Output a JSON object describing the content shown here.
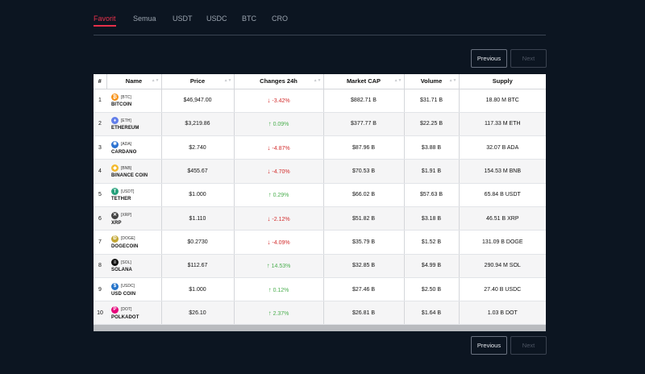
{
  "tabs": [
    {
      "label": "Favorit",
      "active": true
    },
    {
      "label": "Semua",
      "active": false
    },
    {
      "label": "USDT",
      "active": false
    },
    {
      "label": "USDC",
      "active": false
    },
    {
      "label": "BTC",
      "active": false
    },
    {
      "label": "CRO",
      "active": false
    }
  ],
  "pagination": {
    "previous": "Previous",
    "next": "Next"
  },
  "table": {
    "headers": [
      "#",
      "Name",
      "Price",
      "Changes 24h",
      "Market CAP",
      "Volume",
      "Supply"
    ],
    "rows": [
      {
        "num": "1",
        "symbol": "[BTC]",
        "name": "BITCOIN",
        "price": "$46,947.00",
        "change": "-3.42%",
        "dir": "down",
        "mcap": "$882.71 B",
        "volume": "$31.71 B",
        "supply": "18.80 M BTC",
        "icon": "bitcoin-icon",
        "color": "#f7931a",
        "glyph": "₿"
      },
      {
        "num": "2",
        "symbol": "[ETH]",
        "name": "ETHEREUM",
        "price": "$3,219.86",
        "change": "0.09%",
        "dir": "up",
        "mcap": "$377.77 B",
        "volume": "$22.25 B",
        "supply": "117.33 M ETH",
        "icon": "ethereum-icon",
        "color": "#627eea",
        "glyph": "♦"
      },
      {
        "num": "3",
        "symbol": "[ADA]",
        "name": "CARDANO",
        "price": "$2.740",
        "change": "-4.87%",
        "dir": "down",
        "mcap": "$87.96 B",
        "volume": "$3.88 B",
        "supply": "32.07 B ADA",
        "icon": "cardano-icon",
        "color": "#2a71d0",
        "glyph": "✱"
      },
      {
        "num": "4",
        "symbol": "[BNB]",
        "name": "BINANCE COIN",
        "price": "$455.67",
        "change": "-4.70%",
        "dir": "down",
        "mcap": "$70.53 B",
        "volume": "$1.91 B",
        "supply": "154.53 M BNB",
        "icon": "binance-icon",
        "color": "#f3ba2f",
        "glyph": "◆"
      },
      {
        "num": "5",
        "symbol": "[USDT]",
        "name": "TETHER",
        "price": "$1.000",
        "change": "0.29%",
        "dir": "up",
        "mcap": "$66.02 B",
        "volume": "$57.63 B",
        "supply": "65.84 B USDT",
        "icon": "tether-icon",
        "color": "#26a17b",
        "glyph": "T"
      },
      {
        "num": "6",
        "symbol": "[XRP]",
        "name": "XRP",
        "price": "$1.110",
        "change": "-2.12%",
        "dir": "down",
        "mcap": "$51.82 B",
        "volume": "$3.18 B",
        "supply": "46.51 B XRP",
        "icon": "xrp-icon",
        "color": "#444444",
        "glyph": "✕"
      },
      {
        "num": "7",
        "symbol": "[DOGE]",
        "name": "DOGECOIN",
        "price": "$0.2730",
        "change": "-4.09%",
        "dir": "down",
        "mcap": "$35.79 B",
        "volume": "$1.52 B",
        "supply": "131.09 B DOGE",
        "icon": "dogecoin-icon",
        "color": "#c2a633",
        "glyph": "Ð"
      },
      {
        "num": "8",
        "symbol": "[SOL]",
        "name": "SOLANA",
        "price": "$112.67",
        "change": "14.53%",
        "dir": "up",
        "mcap": "$32.85 B",
        "volume": "$4.99 B",
        "supply": "290.94 M SOL",
        "icon": "solana-icon",
        "color": "#111111",
        "glyph": "≡"
      },
      {
        "num": "9",
        "symbol": "[USDC]",
        "name": "USD COIN",
        "price": "$1.000",
        "change": "0.12%",
        "dir": "up",
        "mcap": "$27.46 B",
        "volume": "$2.50 B",
        "supply": "27.40 B USDC",
        "icon": "usd-coin-icon",
        "color": "#2775ca",
        "glyph": "$"
      },
      {
        "num": "10",
        "symbol": "[DOT]",
        "name": "POLKADOT",
        "price": "$26.10",
        "change": "2.37%",
        "dir": "up",
        "mcap": "$26.81 B",
        "volume": "$1.64 B",
        "supply": "1.03 B DOT",
        "icon": "polkadot-icon",
        "color": "#e6007a",
        "glyph": "P"
      }
    ]
  }
}
